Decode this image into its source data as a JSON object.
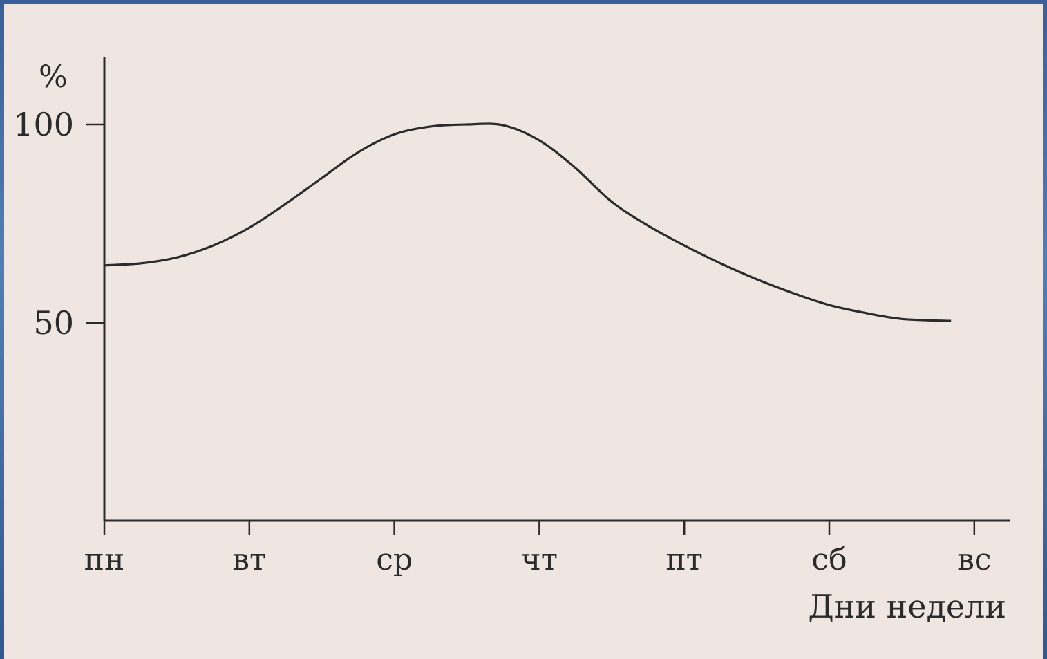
{
  "chart_data": {
    "type": "line",
    "title": "",
    "xlabel": "Дни недели",
    "ylabel": "%",
    "categories": [
      "пн",
      "вт",
      "ср",
      "чт",
      "пт",
      "сб",
      "вс"
    ],
    "y_ticks": [
      100,
      50
    ],
    "ylim": [
      0,
      110
    ],
    "grid": false,
    "series": [
      {
        "x": [
          0,
          0.25,
          0.5,
          0.75,
          1.0,
          1.25,
          1.5,
          1.75,
          2.0,
          2.25,
          2.5,
          2.75,
          3.0,
          3.25,
          3.5,
          3.75,
          4.0,
          4.25,
          4.5,
          4.75,
          5.0,
          5.25,
          5.5,
          5.84
        ],
        "y": [
          64.5,
          65,
          66.5,
          69.5,
          74,
          80,
          86.5,
          93,
          97.5,
          99.5,
          100,
          99.8,
          96,
          89,
          80.5,
          74.5,
          69.5,
          65,
          61,
          57.5,
          54.5,
          52.5,
          51,
          50.5
        ]
      }
    ]
  }
}
